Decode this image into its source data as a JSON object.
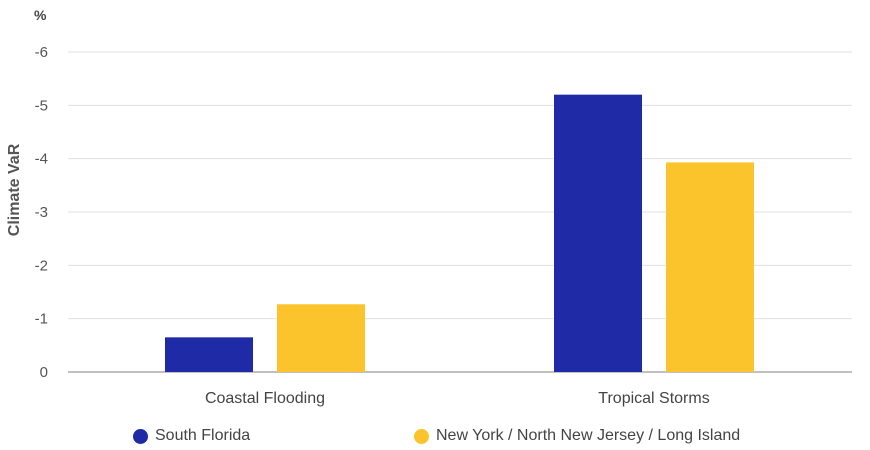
{
  "chart_data": {
    "type": "bar",
    "unit_label": "%",
    "ylabel": "Climate VaR",
    "xlabel": "",
    "title": "",
    "categories": [
      "Coastal Flooding",
      "Tropical Storms"
    ],
    "series": [
      {
        "name": "South Florida",
        "color": "#1f2aa6",
        "values": [
          -0.65,
          -5.2
        ]
      },
      {
        "name": "New York / North New Jersey / Long Island",
        "color": "#fcc42c",
        "values": [
          -1.27,
          -3.93
        ]
      }
    ],
    "ylim": [
      0,
      -6
    ],
    "yticks": [
      0,
      -1,
      -2,
      -3,
      -4,
      -5,
      -6
    ],
    "y_inverted": true,
    "grid": true,
    "legend_position": "bottom"
  }
}
